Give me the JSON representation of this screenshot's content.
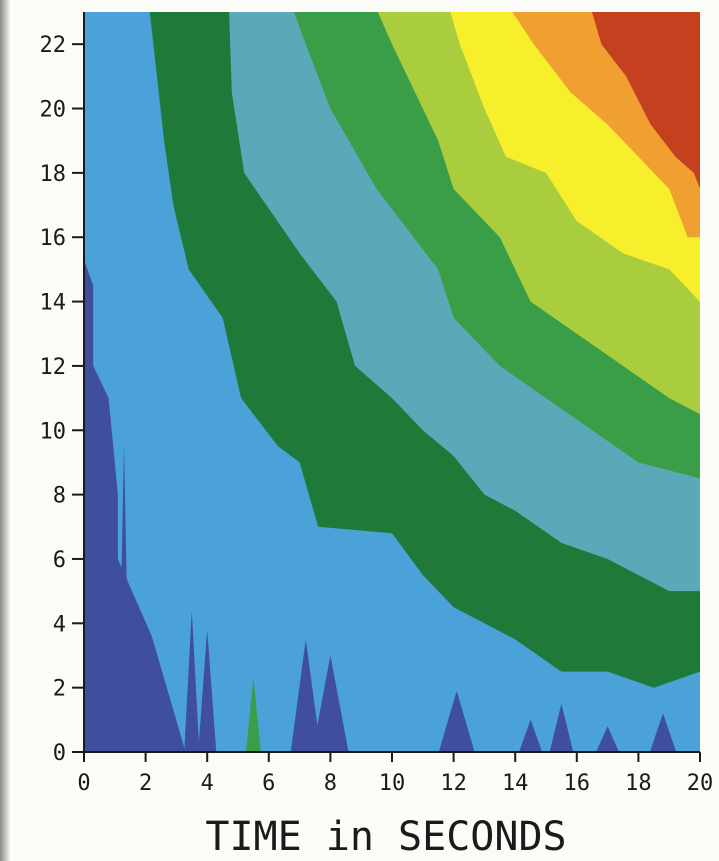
{
  "chart_data": {
    "type": "heatmap",
    "title": "",
    "xlabel": "TIME in SECONDS",
    "ylabel": "",
    "xlim": [
      0,
      20
    ],
    "ylim": [
      0,
      23
    ],
    "x_ticks": [
      0,
      2,
      4,
      6,
      8,
      10,
      12,
      14,
      16,
      18,
      20
    ],
    "x_tick_labels": [
      "0",
      "2",
      "4",
      "6",
      "8",
      "10",
      "12",
      "14",
      "16",
      "18",
      "20"
    ],
    "y_ticks": [
      0,
      2,
      4,
      6,
      8,
      10,
      12,
      14,
      16,
      18,
      20,
      22
    ],
    "y_tick_labels": [
      "0",
      "2",
      "4",
      "6",
      "8",
      "10",
      "12",
      "14",
      "16",
      "18",
      "20",
      "22"
    ],
    "grid": false,
    "legend": "none",
    "colors": {
      "level_0": "#3f4f9e",
      "level_1": "#4aa2d8",
      "level_2": "#1f7a3a",
      "level_3": "#5aa8b8",
      "level_4": "#3a9e48",
      "level_5": "#aacd3e",
      "level_6": "#f7ee2c",
      "level_7": "#f0a030",
      "level_8": "#c4401e"
    },
    "contours": [
      {
        "level": 1,
        "boundary": [
          [
            0.0,
            15.3
          ],
          [
            0.3,
            14.5
          ],
          [
            0.3,
            12.0
          ],
          [
            0.8,
            11.0
          ],
          [
            1.1,
            8.0
          ],
          [
            1.1,
            6.0
          ],
          [
            2.2,
            3.6
          ],
          [
            3.3,
            0.0
          ]
        ]
      },
      {
        "level": 2,
        "boundary": [
          [
            2.1,
            23.3
          ],
          [
            2.6,
            19.0
          ],
          [
            2.9,
            17.0
          ],
          [
            3.4,
            15.0
          ],
          [
            4.5,
            13.5
          ],
          [
            5.1,
            11.0
          ],
          [
            6.3,
            9.5
          ],
          [
            7.0,
            9.0
          ],
          [
            7.6,
            7.0
          ],
          [
            10.0,
            6.8
          ],
          [
            11.0,
            5.5
          ],
          [
            12.0,
            4.5
          ],
          [
            13.0,
            4.0
          ],
          [
            14.0,
            3.5
          ],
          [
            15.5,
            2.5
          ],
          [
            17.0,
            2.5
          ],
          [
            18.5,
            2.0
          ],
          [
            20.0,
            2.5
          ]
        ]
      },
      {
        "level": 3,
        "boundary": [
          [
            4.7,
            23.3
          ],
          [
            4.8,
            20.5
          ],
          [
            5.2,
            18.0
          ],
          [
            7.0,
            15.5
          ],
          [
            8.2,
            14.0
          ],
          [
            8.8,
            12.0
          ],
          [
            10.0,
            11.0
          ],
          [
            11.0,
            10.0
          ],
          [
            12.0,
            9.2
          ],
          [
            13.0,
            8.0
          ],
          [
            14.0,
            7.5
          ],
          [
            15.5,
            6.5
          ],
          [
            17.0,
            6.0
          ],
          [
            18.0,
            5.5
          ],
          [
            19.0,
            5.0
          ],
          [
            20.0,
            5.0
          ]
        ]
      },
      {
        "level": 4,
        "boundary": [
          [
            6.7,
            23.3
          ],
          [
            7.2,
            22.0
          ],
          [
            8.0,
            20.0
          ],
          [
            9.5,
            17.5
          ],
          [
            11.5,
            15.0
          ],
          [
            12.0,
            13.5
          ],
          [
            13.5,
            12.0
          ],
          [
            15.0,
            11.0
          ],
          [
            16.5,
            10.0
          ],
          [
            18.0,
            9.0
          ],
          [
            20.0,
            8.5
          ]
        ]
      },
      {
        "level": 5,
        "boundary": [
          [
            9.4,
            23.3
          ],
          [
            10.0,
            22.0
          ],
          [
            11.5,
            19.0
          ],
          [
            12.0,
            17.5
          ],
          [
            13.5,
            16.0
          ],
          [
            14.5,
            14.0
          ],
          [
            16.0,
            13.0
          ],
          [
            17.5,
            12.0
          ],
          [
            19.0,
            11.0
          ],
          [
            20.0,
            10.5
          ]
        ]
      },
      {
        "level": 6,
        "boundary": [
          [
            11.8,
            23.3
          ],
          [
            12.2,
            22.0
          ],
          [
            13.0,
            20.0
          ],
          [
            13.7,
            18.5
          ],
          [
            15.0,
            18.0
          ],
          [
            16.0,
            16.5
          ],
          [
            17.5,
            15.5
          ],
          [
            19.0,
            15.0
          ],
          [
            20.0,
            14.0
          ]
        ]
      },
      {
        "level": 7,
        "boundary": [
          [
            13.7,
            23.3
          ],
          [
            14.6,
            22.0
          ],
          [
            15.8,
            20.5
          ],
          [
            17.0,
            19.5
          ],
          [
            18.0,
            18.5
          ],
          [
            19.0,
            17.5
          ],
          [
            19.6,
            16.0
          ],
          [
            20.0,
            16.0
          ]
        ]
      },
      {
        "level": 8,
        "boundary": [
          [
            16.4,
            23.3
          ],
          [
            16.8,
            22.0
          ],
          [
            17.6,
            21.0
          ],
          [
            18.4,
            19.5
          ],
          [
            19.2,
            18.5
          ],
          [
            19.8,
            18.0
          ],
          [
            20.0,
            17.5
          ]
        ]
      }
    ],
    "spikes": [
      {
        "level": 0,
        "x": 3.5,
        "width": 0.5,
        "top": 4.4
      },
      {
        "level": 0,
        "x": 4.0,
        "width": 0.6,
        "top": 3.8
      },
      {
        "level": 0,
        "x": 7.2,
        "width": 1.0,
        "top": 3.5
      },
      {
        "level": 0,
        "x": 8.0,
        "width": 1.2,
        "top": 3.0
      },
      {
        "level": 0,
        "x": 12.1,
        "width": 1.2,
        "top": 1.9
      },
      {
        "level": 0,
        "x": 14.5,
        "width": 0.8,
        "top": 1.0
      },
      {
        "level": 0,
        "x": 15.5,
        "width": 0.8,
        "top": 1.5
      },
      {
        "level": 0,
        "x": 17.0,
        "width": 0.8,
        "top": 0.8
      },
      {
        "level": 0,
        "x": 18.8,
        "width": 0.9,
        "top": 1.2
      },
      {
        "level": 0,
        "x": 1.3,
        "width": 0.4,
        "top": 9.5
      },
      {
        "level": 4,
        "x": 5.5,
        "width": 0.5,
        "top": 2.3
      }
    ]
  }
}
